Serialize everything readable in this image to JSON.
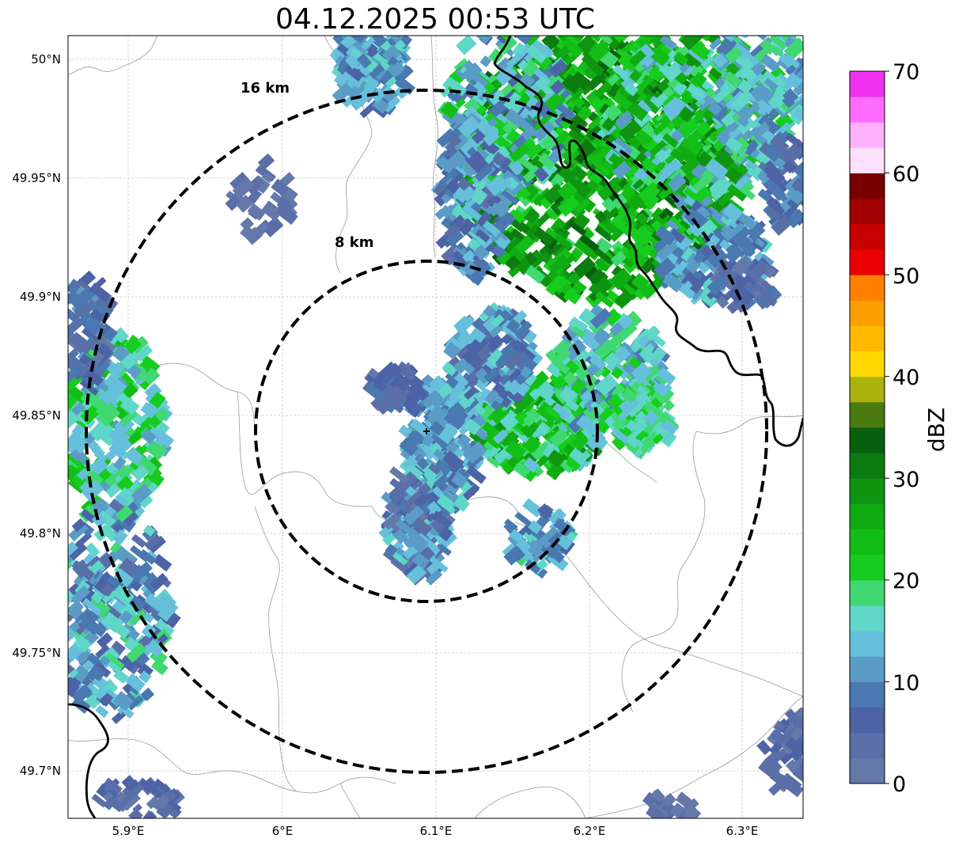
{
  "title": "04.12.2025 00:53 UTC",
  "map": {
    "x_ticks": [
      "5.9°E",
      "6°E",
      "6.1°E",
      "6.2°E",
      "6.3°E"
    ],
    "y_ticks": [
      "50°N",
      "49.95°N",
      "49.9°N",
      "49.85°N",
      "49.8°N",
      "49.75°N",
      "49.7°N"
    ],
    "lon_range": [
      5.86,
      6.34
    ],
    "lat_range": [
      49.68,
      50.01
    ],
    "radar_site": {
      "lon": 6.095,
      "lat": 49.843
    },
    "rings": [
      {
        "label": "8 km",
        "radius_km": 8
      },
      {
        "label": "16 km",
        "radius_km": 16
      }
    ]
  },
  "colorbar": {
    "label": "dBZ",
    "ticks": [
      "0",
      "10",
      "20",
      "30",
      "40",
      "50",
      "60",
      "70"
    ],
    "min": 0,
    "max": 70,
    "step": 2.5,
    "colors": [
      "#6578aa",
      "#5a6ea8",
      "#4c63a6",
      "#4a78b0",
      "#5a9cc6",
      "#66c0dc",
      "#5fd6c8",
      "#40d870",
      "#16cc1e",
      "#12be16",
      "#10aa12",
      "#0f9412",
      "#0c7c10",
      "#08600c",
      "#4a7a10",
      "#aab20c",
      "#ffd800",
      "#ffba00",
      "#ff9e00",
      "#ff8000",
      "#e80000",
      "#c80000",
      "#a00000",
      "#7a0000",
      "#ffe0ff",
      "#ffb0ff",
      "#ff6cff",
      "#f032f0"
    ]
  }
}
